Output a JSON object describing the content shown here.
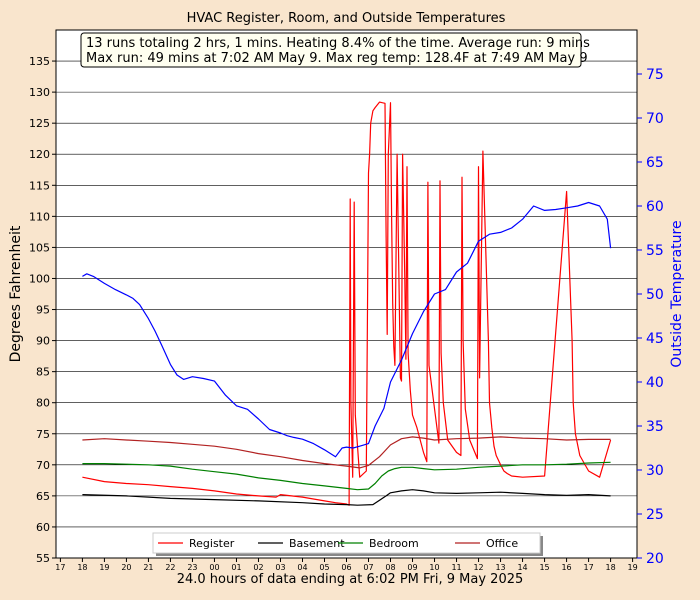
{
  "chart_data": {
    "type": "line",
    "title": "HVAC Register, Room, and Outside Temperatures",
    "xlabel": "24.0 hours of data ending at 6:02 PM Fri, 9 May 2025",
    "ylabel": "Degrees Fahrenheit",
    "ylabel_right": "Outside Temperature",
    "ylim": [
      55,
      140
    ],
    "ylim_right": [
      20,
      80
    ],
    "xlim": [
      16.8,
      19.2
    ],
    "x_unit": "hour of day (17 = 5 PM May 8, 1 = 1 AM May 9, 18 = 6 PM May 9)",
    "yticks": [
      55,
      60,
      65,
      70,
      75,
      80,
      85,
      90,
      95,
      100,
      105,
      110,
      115,
      120,
      125,
      130,
      135
    ],
    "yticks_right": [
      20,
      25,
      30,
      35,
      40,
      45,
      50,
      55,
      60,
      65,
      70,
      75
    ],
    "xtick_labels": [
      "17",
      "18",
      "19",
      "20",
      "21",
      "22",
      "23",
      "00",
      "01",
      "02",
      "03",
      "04",
      "05",
      "06",
      "07",
      "08",
      "09",
      "10",
      "11",
      "12",
      "13",
      "14",
      "15",
      "16",
      "17",
      "18",
      "19"
    ],
    "grid": true,
    "legend_position": "bottom-center",
    "annotation": [
      "13 runs totaling 2 hrs, 1 mins. Heating  8.4% of the time. Average run: 9 mins",
      "Max run: 49 mins at 7:02 AM May 9. Max reg temp: 128.4F at 7:49 AM May 9"
    ],
    "series": [
      {
        "name": "Register",
        "axis": "left",
        "color": "#ff0000",
        "x": [
          18.0,
          19.0,
          20.0,
          21.0,
          22.0,
          23.0,
          24.0,
          25.0,
          26.0,
          26.8,
          27.0,
          28.0,
          29.0,
          29.5,
          30.0,
          30.12,
          30.17,
          30.2,
          30.28,
          30.35,
          30.4,
          30.6,
          30.9,
          31.0,
          31.05,
          31.1,
          31.2,
          31.3,
          31.5,
          31.75,
          31.8,
          31.85,
          31.9,
          32.0,
          32.05,
          32.1,
          32.15,
          32.2,
          32.3,
          32.45,
          32.5,
          32.55,
          32.65,
          32.7,
          32.75,
          32.8,
          32.85,
          32.9,
          33.0,
          33.2,
          33.5,
          33.65,
          33.7,
          33.75,
          34.2,
          34.25,
          34.3,
          34.4,
          34.6,
          35.0,
          35.2,
          35.25,
          35.3,
          35.4,
          35.6,
          35.95,
          36.0,
          36.05,
          36.2,
          36.45,
          36.5,
          36.6,
          36.7,
          36.8,
          37.0,
          37.15,
          37.3,
          37.5,
          38.0,
          39.0,
          40.0,
          40.25,
          40.3,
          40.4,
          40.6,
          41.0,
          41.5,
          42.0
        ],
        "values": [
          68,
          67.3,
          67,
          66.8,
          66.5,
          66.2,
          65.8,
          65.3,
          65,
          64.8,
          65.2,
          64.8,
          64.2,
          63.9,
          63.7,
          63.5,
          112.8,
          80,
          68,
          112.3,
          78,
          68,
          69,
          117,
          120,
          125,
          127,
          127.5,
          128.4,
          128.2,
          107,
          91,
          120,
          128.3,
          110,
          96,
          89,
          86,
          120,
          84,
          83.5,
          120,
          100,
          87,
          118,
          88,
          85,
          82,
          78,
          76,
          72,
          70.5,
          115.5,
          86,
          73.5,
          115.7,
          88,
          80,
          74,
          72,
          71.5,
          116.3,
          90,
          79,
          74,
          71,
          118,
          84,
          120.5,
          90,
          80,
          76,
          73,
          71.5,
          70,
          69,
          68.6,
          68.2,
          68,
          68.2,
          114,
          90,
          80,
          75,
          71.5,
          69,
          68,
          74
        ]
      },
      {
        "name": "Basement",
        "axis": "left",
        "color": "#000000",
        "x": [
          18.0,
          20.0,
          22.0,
          24.0,
          26.0,
          28.0,
          29.0,
          30.0,
          30.5,
          31.2,
          31.8,
          32.0,
          32.5,
          33.0,
          33.5,
          34.0,
          35.0,
          36.0,
          37.0,
          38.0,
          39.0,
          40.0,
          41.0,
          42.0
        ],
        "values": [
          65.2,
          65,
          64.6,
          64.4,
          64.2,
          63.9,
          63.7,
          63.6,
          63.5,
          63.6,
          65,
          65.5,
          65.8,
          66,
          65.8,
          65.5,
          65.4,
          65.5,
          65.6,
          65.4,
          65.2,
          65.1,
          65.2,
          65
        ]
      },
      {
        "name": "Bedroom",
        "axis": "left",
        "color": "#008000",
        "x": [
          18.0,
          19.0,
          20.0,
          21.0,
          22.0,
          23.0,
          24.0,
          25.0,
          26.0,
          27.0,
          28.0,
          29.0,
          30.0,
          30.5,
          31.0,
          31.3,
          31.6,
          31.9,
          32.2,
          32.5,
          33.0,
          33.5,
          34.0,
          35.0,
          36.0,
          37.0,
          38.0,
          39.0,
          40.0,
          41.0,
          42.0
        ],
        "values": [
          70.2,
          70.2,
          70.1,
          70,
          69.8,
          69.3,
          68.9,
          68.5,
          67.9,
          67.5,
          67,
          66.6,
          66.2,
          66,
          66.1,
          67,
          68.2,
          69,
          69.4,
          69.6,
          69.6,
          69.4,
          69.2,
          69.3,
          69.6,
          69.8,
          70,
          70,
          70.1,
          70.3,
          70.4
        ]
      },
      {
        "name": "Office",
        "axis": "left",
        "color": "#b22222",
        "x": [
          18.0,
          19.0,
          20.0,
          21.0,
          22.0,
          23.0,
          24.0,
          25.0,
          26.0,
          27.0,
          28.0,
          29.0,
          30.0,
          30.6,
          31.0,
          31.5,
          32.0,
          32.5,
          33.0,
          33.5,
          34.0,
          35.0,
          36.0,
          37.0,
          38.0,
          39.0,
          40.0,
          41.0,
          42.0
        ],
        "values": [
          74,
          74.2,
          74,
          73.8,
          73.6,
          73.3,
          73,
          72.5,
          71.8,
          71.3,
          70.7,
          70.2,
          69.8,
          69.5,
          69.9,
          71.3,
          73.2,
          74.2,
          74.5,
          74.3,
          74,
          74.2,
          74.3,
          74.5,
          74.3,
          74.2,
          74,
          74.1,
          74.1
        ]
      },
      {
        "name": "Outside",
        "axis": "right",
        "color": "#0000ff",
        "x": [
          18.0,
          18.2,
          18.5,
          19.0,
          19.5,
          20.0,
          20.3,
          20.6,
          21.0,
          21.3,
          21.6,
          22.0,
          22.3,
          22.6,
          23.0,
          23.5,
          24.0,
          24.5,
          25.0,
          25.5,
          26.0,
          26.5,
          27.0,
          27.3,
          27.6,
          28.0,
          28.5,
          29.0,
          29.5,
          29.8,
          30.0,
          30.3,
          30.6,
          31.0,
          31.3,
          31.7,
          32.0,
          32.5,
          33.0,
          33.5,
          34.0,
          34.5,
          35.0,
          35.5,
          36.0,
          36.5,
          37.0,
          37.5,
          38.0,
          38.5,
          39.0,
          39.5,
          40.0,
          40.5,
          41.0,
          41.5,
          41.85,
          42.0
        ],
        "values": [
          52,
          52.3,
          52,
          51.2,
          50.5,
          49.9,
          49.5,
          48.8,
          47.2,
          45.8,
          44.2,
          42,
          40.8,
          40.3,
          40.6,
          40.4,
          40.1,
          38.5,
          37.3,
          36.9,
          35.8,
          34.6,
          34.2,
          33.9,
          33.7,
          33.5,
          33,
          32.3,
          31.5,
          32.5,
          32.6,
          32.5,
          32.7,
          33,
          35,
          37,
          40,
          42.5,
          45.5,
          48,
          50,
          50.5,
          52.5,
          53.5,
          56,
          56.8,
          57,
          57.5,
          58.5,
          60,
          59.5,
          59.6,
          59.8,
          60,
          60.4,
          60,
          58.5,
          55.2
        ]
      }
    ]
  }
}
